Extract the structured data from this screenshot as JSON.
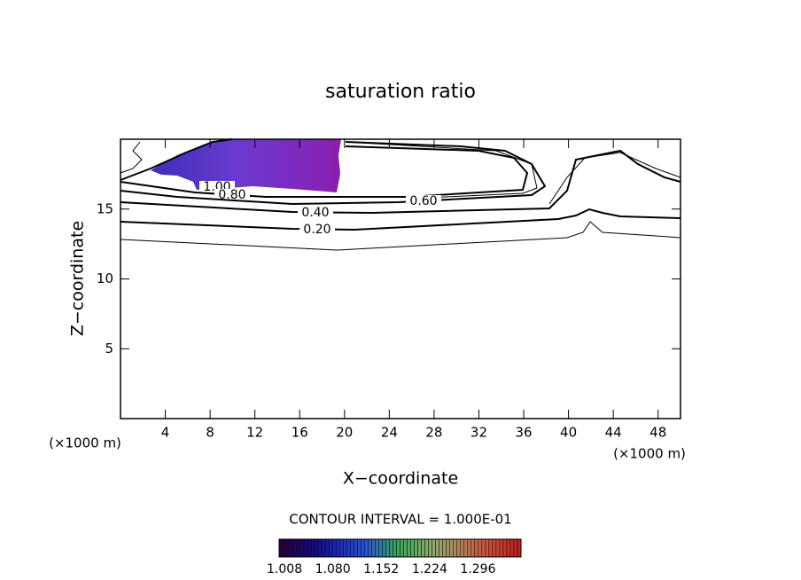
{
  "chart_data": {
    "type": "contour",
    "title": "saturation ratio",
    "x_label": "X−coordinate",
    "y_label": "Z−coordinate",
    "x_unit": "(×1000 m)",
    "y_unit": "(×1000 m)",
    "xlim": [
      0,
      50
    ],
    "xticks": [
      4,
      8,
      12,
      16,
      20,
      24,
      28,
      32,
      36,
      40,
      44,
      48
    ],
    "ylim": [
      0,
      20
    ],
    "yticks": [
      5,
      10,
      15
    ],
    "levels": [
      1.0,
      0.8,
      0.6,
      0.4,
      0.2
    ],
    "value_labels": [
      "1.00",
      "0.80",
      "0.60",
      "0.40",
      "0.20"
    ],
    "note": "CONTOUR INTERVAL = 1.000E-01",
    "colorbar": {
      "lim": [
        1.0,
        1.36
      ],
      "ticks": [
        1.008,
        {
          "value": 1.08,
          "label": "1.080"
        },
        1.152,
        1.224,
        1.296
      ]
    }
  }
}
